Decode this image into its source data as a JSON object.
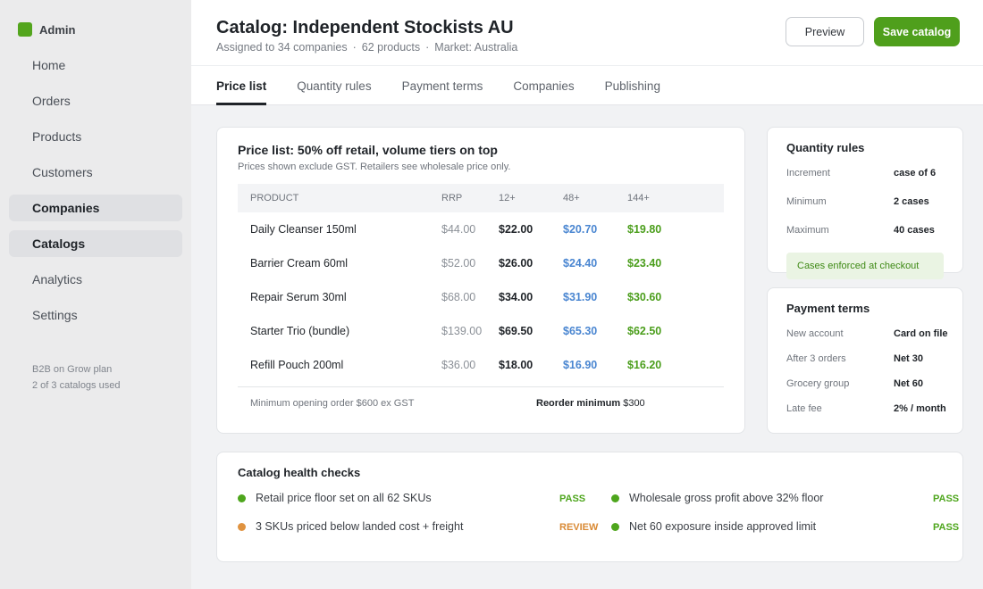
{
  "sidebar": {
    "brand": "Admin",
    "items": [
      {
        "label": "Home"
      },
      {
        "label": "Orders"
      },
      {
        "label": "Products"
      },
      {
        "label": "Customers"
      },
      {
        "label": "Companies"
      },
      {
        "label": "Catalogs"
      },
      {
        "label": "Analytics"
      },
      {
        "label": "Settings"
      }
    ],
    "plan_line1": "B2B on Grow plan",
    "plan_line2": "2 of 3 catalogs used"
  },
  "header": {
    "title": "Catalog: Independent Stockists AU",
    "meta": [
      "Assigned to 34 companies",
      "62 products",
      "Market: Australia"
    ],
    "meta_sep": "·",
    "preview_label": "Preview",
    "save_label": "Save catalog",
    "tabs": [
      {
        "label": "Price list"
      },
      {
        "label": "Quantity rules"
      },
      {
        "label": "Payment terms"
      },
      {
        "label": "Companies"
      },
      {
        "label": "Publishing"
      }
    ]
  },
  "price_list": {
    "title": "Price list: 50% off retail, volume tiers on top",
    "subtitle": "Prices shown exclude GST. Retailers see wholesale price only.",
    "columns": [
      "PRODUCT",
      "RRP",
      "12+",
      "48+",
      "144+"
    ],
    "rows": [
      [
        "Daily Cleanser 150ml",
        "$44.00",
        "$22.00",
        "$20.70",
        "$19.80"
      ],
      [
        "Barrier Cream 60ml",
        "$52.00",
        "$26.00",
        "$24.40",
        "$23.40"
      ],
      [
        "Repair Serum 30ml",
        "$68.00",
        "$34.00",
        "$31.90",
        "$30.60"
      ],
      [
        "Starter Trio (bundle)",
        "$139.00",
        "$69.50",
        "$65.30",
        "$62.50"
      ],
      [
        "Refill Pouch 200ml",
        "$36.00",
        "$18.00",
        "$16.90",
        "$16.20"
      ]
    ],
    "min_opening": "Minimum opening order  $600 ex GST",
    "reorder_label": "Reorder minimum",
    "reorder_value": "$300"
  },
  "quantity_rules": {
    "title": "Quantity rules",
    "rows": [
      {
        "key": "Increment",
        "value": "case of 6"
      },
      {
        "key": "Minimum",
        "value": "2 cases"
      },
      {
        "key": "Maximum",
        "value": "40 cases"
      }
    ],
    "note": "Cases enforced at checkout"
  },
  "payment_terms": {
    "title": "Payment terms",
    "rows": [
      {
        "key": "New account",
        "value": "Card on file"
      },
      {
        "key": "After 3 orders",
        "value": "Net 30"
      },
      {
        "key": "Grocery group",
        "value": "Net 60"
      },
      {
        "key": "Late fee",
        "value": "2% / month"
      }
    ]
  },
  "health": {
    "title": "Catalog health checks",
    "checks": [
      {
        "label": "Retail price floor set on all 62 SKUs",
        "status": "PASS",
        "color": "#4ea61d"
      },
      {
        "label": "Wholesale gross profit above 32% floor",
        "status": "PASS",
        "color": "#4ea61d"
      },
      {
        "label": "3 SKUs priced below landed cost + freight",
        "status": "REVIEW",
        "color": "#e09340"
      },
      {
        "label": "Net 60 exposure inside approved limit",
        "status": "PASS",
        "color": "#4ea61d"
      }
    ]
  },
  "colors": {
    "accent": "#4f9f1c",
    "tier48": "#4a86d1",
    "tier144": "#4b9e1c",
    "review": "#e09340"
  }
}
